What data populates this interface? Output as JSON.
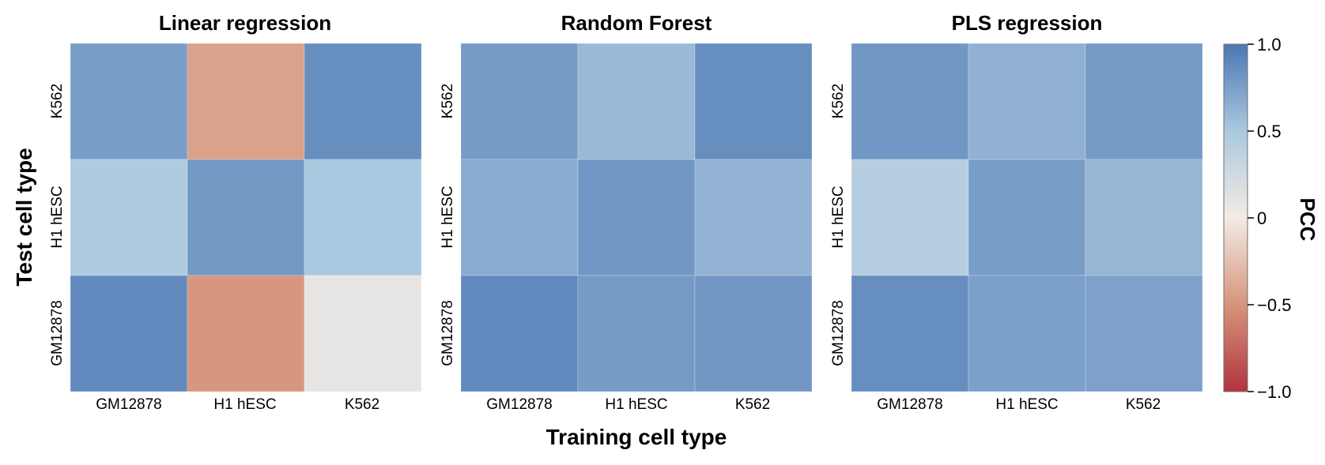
{
  "chart_data": {
    "type": "heatmap",
    "panels": [
      {
        "title": "Linear regression",
        "x_categories": [
          "GM12878",
          "H1 hESC",
          "K562"
        ],
        "y_categories": [
          "K562",
          "H1 hESC",
          "GM12878"
        ],
        "values": [
          [
            0.76,
            -0.43,
            0.86
          ],
          [
            0.46,
            0.79,
            0.5
          ],
          [
            0.88,
            -0.49,
            0.09
          ]
        ]
      },
      {
        "title": "Random Forest",
        "x_categories": [
          "GM12878",
          "H1 hESC",
          "K562"
        ],
        "y_categories": [
          "K562",
          "H1 hESC",
          "GM12878"
        ],
        "values": [
          [
            0.78,
            0.59,
            0.86
          ],
          [
            0.67,
            0.8,
            0.63
          ],
          [
            0.88,
            0.78,
            0.8
          ]
        ]
      },
      {
        "title": "PLS regression",
        "x_categories": [
          "GM12878",
          "H1 hESC",
          "K562"
        ],
        "y_categories": [
          "K562",
          "H1 hESC",
          "GM12878"
        ],
        "values": [
          [
            0.8,
            0.64,
            0.78
          ],
          [
            0.41,
            0.76,
            0.61
          ],
          [
            0.86,
            0.75,
            0.74
          ]
        ]
      }
    ],
    "xlabel": "Training cell type",
    "ylabel": "Test cell type",
    "colorbar": {
      "title": "PCC",
      "range": [
        -1.0,
        1.0
      ],
      "ticks": [
        1.0,
        0.5,
        0,
        -0.5,
        -1.0
      ],
      "tick_labels": [
        "1.0",
        "0.5",
        "0",
        "−0.5",
        "−1.0"
      ],
      "colors": [
        "#b2333f",
        "#d6957c",
        "#f4ebe4",
        "#aac8df",
        "#4c77b3"
      ]
    }
  }
}
